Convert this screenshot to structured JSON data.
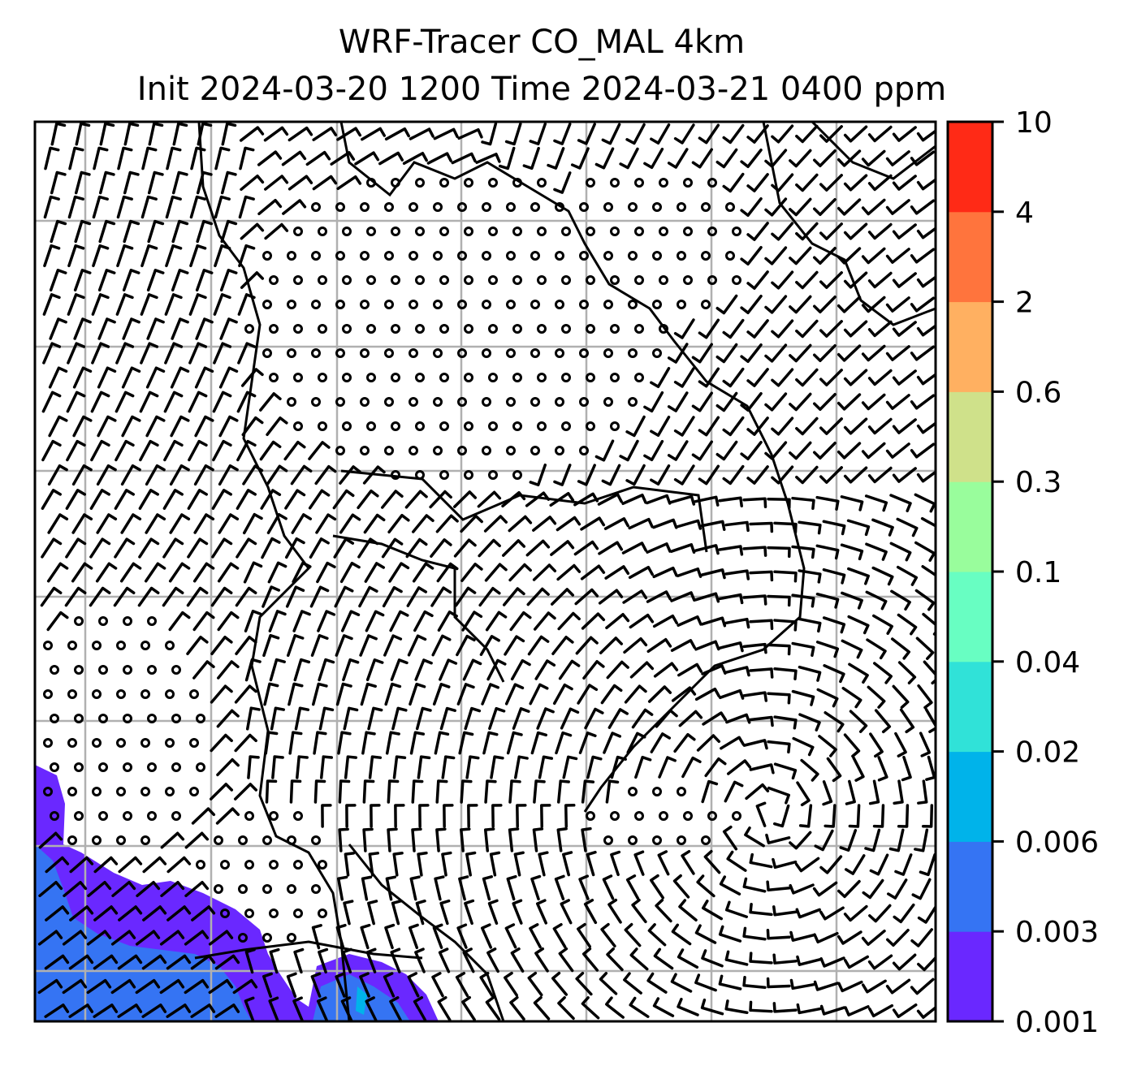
{
  "title": {
    "line1": "WRF-Tracer CO_MAL 4km",
    "line2": "Init 2024-03-20 1200 Time 2024-03-21 0400 ppm"
  },
  "colorbar": {
    "levels": [
      "0.001",
      "0.003",
      "0.006",
      "0.02",
      "0.04",
      "0.1",
      "0.3",
      "0.6",
      "2",
      "4",
      "10"
    ],
    "colors": [
      "#6a28ff",
      "#3574f3",
      "#00b3ea",
      "#30e2d8",
      "#68fec2",
      "#99fd9c",
      "#cfe18a",
      "#ffb061",
      "#ff743d",
      "#ff2a16"
    ]
  },
  "map": {
    "fill_colors": {
      "purple": "#6a28ff",
      "blue": "#3574f3",
      "cyan": "#00b3ea"
    },
    "grid_color": "#b0b0b0"
  }
}
